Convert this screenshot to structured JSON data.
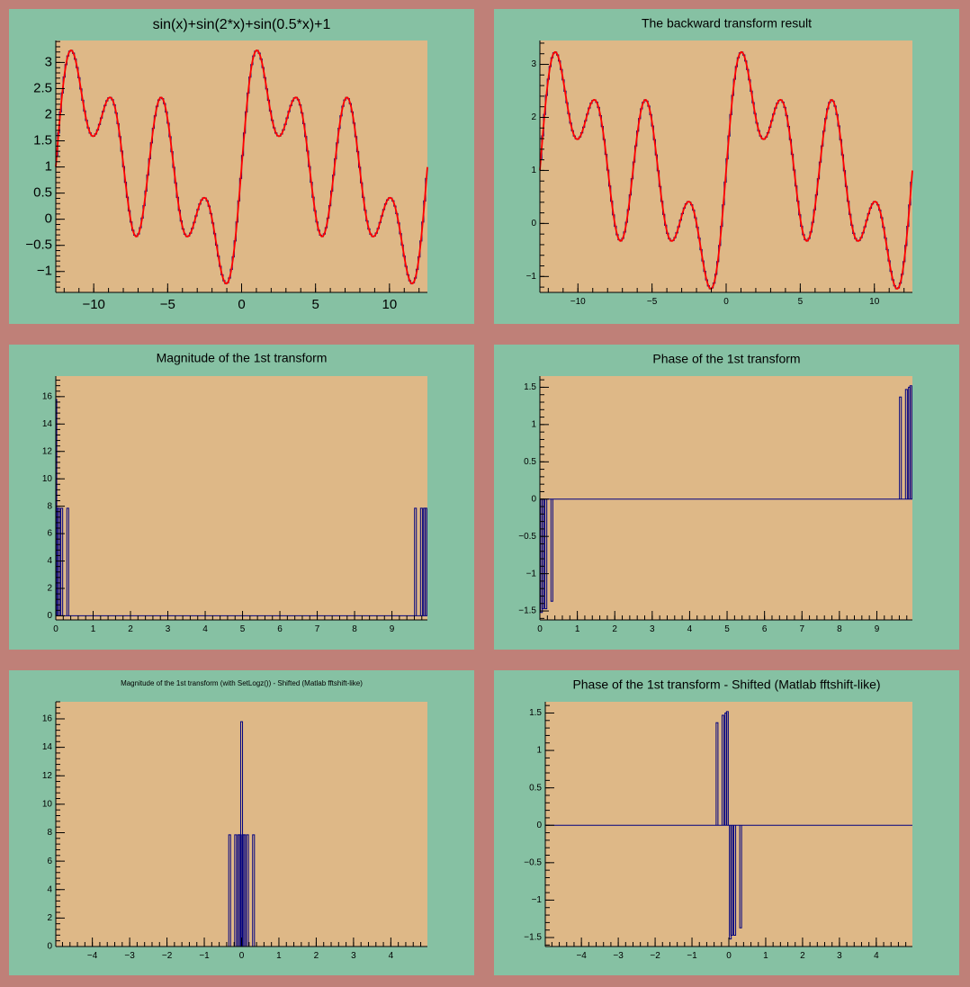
{
  "colors": {
    "canvas_background": "#bf8078",
    "pad_background": "#86c1a3",
    "frame_background": "#deb887",
    "histogram_line": "#000080",
    "function_line": "#ff0000",
    "axis": "#000000"
  },
  "chart_data": [
    {
      "type": "line",
      "title": "sin(x)+sin(2*x)+sin(0.5*x)+1",
      "function": "sin(x)+sin(2*x)+sin(0.5*x)+1",
      "xlim": [
        -12.566,
        12.566
      ],
      "ylim": [
        -1.4,
        3.42
      ],
      "xticks": [
        -10,
        -5,
        0,
        5,
        10
      ],
      "xtick_labels": [
        "−10",
        "−5",
        "0",
        "5",
        "10"
      ],
      "yticks": [
        -1,
        -0.5,
        0,
        0.5,
        1,
        1.5,
        2,
        2.5,
        3
      ],
      "ytick_labels": [
        "−1",
        "−0.5",
        "0",
        "0.5",
        "1",
        "1.5",
        "2",
        "2.5",
        "3"
      ],
      "series": [
        {
          "kind": "histogram",
          "color": "#000080"
        },
        {
          "kind": "function",
          "color": "#ff0000"
        }
      ],
      "grid": false,
      "legend": "none"
    },
    {
      "type": "line",
      "title": "The backward transform result",
      "function": "sin(x)+sin(2*x)+sin(0.5*x)+1",
      "xlim": [
        -12.566,
        12.566
      ],
      "ylim": [
        -1.3,
        3.45
      ],
      "xticks": [
        -10,
        -5,
        0,
        5,
        10
      ],
      "xtick_labels": [
        "−10",
        "−5",
        "0",
        "5",
        "10"
      ],
      "yticks": [
        -1,
        0,
        1,
        2,
        3
      ],
      "ytick_labels": [
        "−1",
        "0",
        "1",
        "2",
        "3"
      ],
      "series": [
        {
          "kind": "histogram",
          "color": "#000080"
        },
        {
          "kind": "function",
          "color": "#ff0000"
        }
      ],
      "grid": false,
      "legend": "none"
    },
    {
      "type": "bar",
      "title": "Magnitude of the 1st transform",
      "xlim": [
        0,
        9.95
      ],
      "ylim": [
        -0.3,
        17.5
      ],
      "xticks": [
        0,
        1,
        2,
        3,
        4,
        5,
        6,
        7,
        8,
        9
      ],
      "xtick_labels": [
        "0",
        "1",
        "2",
        "3",
        "4",
        "5",
        "6",
        "7",
        "8",
        "9"
      ],
      "yticks": [
        0,
        2,
        4,
        6,
        8,
        10,
        12,
        14,
        16
      ],
      "ytick_labels": [
        "0",
        "2",
        "4",
        "6",
        "8",
        "10",
        "12",
        "14",
        "16"
      ],
      "spikes": [
        {
          "x": 0.0,
          "y": 15.8
        },
        {
          "x": 0.04,
          "y": 7.85
        },
        {
          "x": 0.08,
          "y": 7.85
        },
        {
          "x": 0.16,
          "y": 7.85
        },
        {
          "x": 0.32,
          "y": 7.85
        },
        {
          "x": 9.63,
          "y": 7.85
        },
        {
          "x": 9.79,
          "y": 7.85
        },
        {
          "x": 9.87,
          "y": 7.85
        },
        {
          "x": 9.91,
          "y": 7.85
        }
      ],
      "grid": false,
      "legend": "none"
    },
    {
      "type": "bar",
      "title": "Phase of the 1st transform",
      "xlim": [
        0,
        9.95
      ],
      "ylim": [
        -1.62,
        1.65
      ],
      "xticks": [
        0,
        1,
        2,
        3,
        4,
        5,
        6,
        7,
        8,
        9
      ],
      "xtick_labels": [
        "0",
        "1",
        "2",
        "3",
        "4",
        "5",
        "6",
        "7",
        "8",
        "9"
      ],
      "yticks": [
        -1.5,
        -1,
        -0.5,
        0,
        0.5,
        1,
        1.5
      ],
      "ytick_labels": [
        "−1.5",
        "−1",
        "−0.5",
        "0",
        "0.5",
        "1",
        "1.5"
      ],
      "spikes": [
        {
          "x": 0.04,
          "y": -1.52
        },
        {
          "x": 0.08,
          "y": -1.47
        },
        {
          "x": 0.16,
          "y": -1.47
        },
        {
          "x": 0.32,
          "y": -1.37
        },
        {
          "x": 9.63,
          "y": 1.37
        },
        {
          "x": 9.79,
          "y": 1.47
        },
        {
          "x": 9.87,
          "y": 1.5
        },
        {
          "x": 9.91,
          "y": 1.52
        }
      ],
      "grid": false,
      "legend": "none"
    },
    {
      "type": "bar",
      "title": "Magnitude of the 1st transform (with SetLogz()) - Shifted (Matlab fftshift-like)",
      "xlim": [
        -4.98,
        4.98
      ],
      "ylim": [
        0,
        17.2
      ],
      "xticks": [
        -4,
        -3,
        -2,
        -1,
        0,
        1,
        2,
        3,
        4
      ],
      "xtick_labels": [
        "−4",
        "−3",
        "−2",
        "−1",
        "0",
        "1",
        "2",
        "3",
        "4"
      ],
      "yticks": [
        0,
        2,
        4,
        6,
        8,
        10,
        12,
        14,
        16
      ],
      "ytick_labels": [
        "0",
        "2",
        "4",
        "6",
        "8",
        "10",
        "12",
        "14",
        "16"
      ],
      "spikes": [
        {
          "x": -0.32,
          "y": 7.85
        },
        {
          "x": -0.16,
          "y": 7.85
        },
        {
          "x": -0.08,
          "y": 7.85
        },
        {
          "x": -0.04,
          "y": 7.85
        },
        {
          "x": 0.0,
          "y": 15.8
        },
        {
          "x": 0.04,
          "y": 7.85
        },
        {
          "x": 0.08,
          "y": 7.85
        },
        {
          "x": 0.16,
          "y": 7.85
        },
        {
          "x": 0.32,
          "y": 7.85
        }
      ],
      "grid": false,
      "legend": "none"
    },
    {
      "type": "bar",
      "title": "Phase of the 1st transform - Shifted (Matlab fftshift-like)",
      "xlim": [
        -4.98,
        4.98
      ],
      "ylim": [
        -1.62,
        1.65
      ],
      "xticks": [
        -4,
        -3,
        -2,
        -1,
        0,
        1,
        2,
        3,
        4
      ],
      "xtick_labels": [
        "−4",
        "−3",
        "−2",
        "−1",
        "0",
        "1",
        "2",
        "3",
        "4"
      ],
      "yticks": [
        -1.5,
        -1,
        -0.5,
        0,
        0.5,
        1,
        1.5
      ],
      "ytick_labels": [
        "−1.5",
        "−1",
        "−0.5",
        "0",
        "0.5",
        "1",
        "1.5"
      ],
      "spikes": [
        {
          "x": -0.32,
          "y": 1.37
        },
        {
          "x": -0.16,
          "y": 1.47
        },
        {
          "x": -0.08,
          "y": 1.5
        },
        {
          "x": -0.04,
          "y": 1.52
        },
        {
          "x": 0.04,
          "y": -1.52
        },
        {
          "x": 0.08,
          "y": -1.47
        },
        {
          "x": 0.16,
          "y": -1.47
        },
        {
          "x": 0.32,
          "y": -1.37
        }
      ],
      "grid": false,
      "legend": "none"
    }
  ]
}
